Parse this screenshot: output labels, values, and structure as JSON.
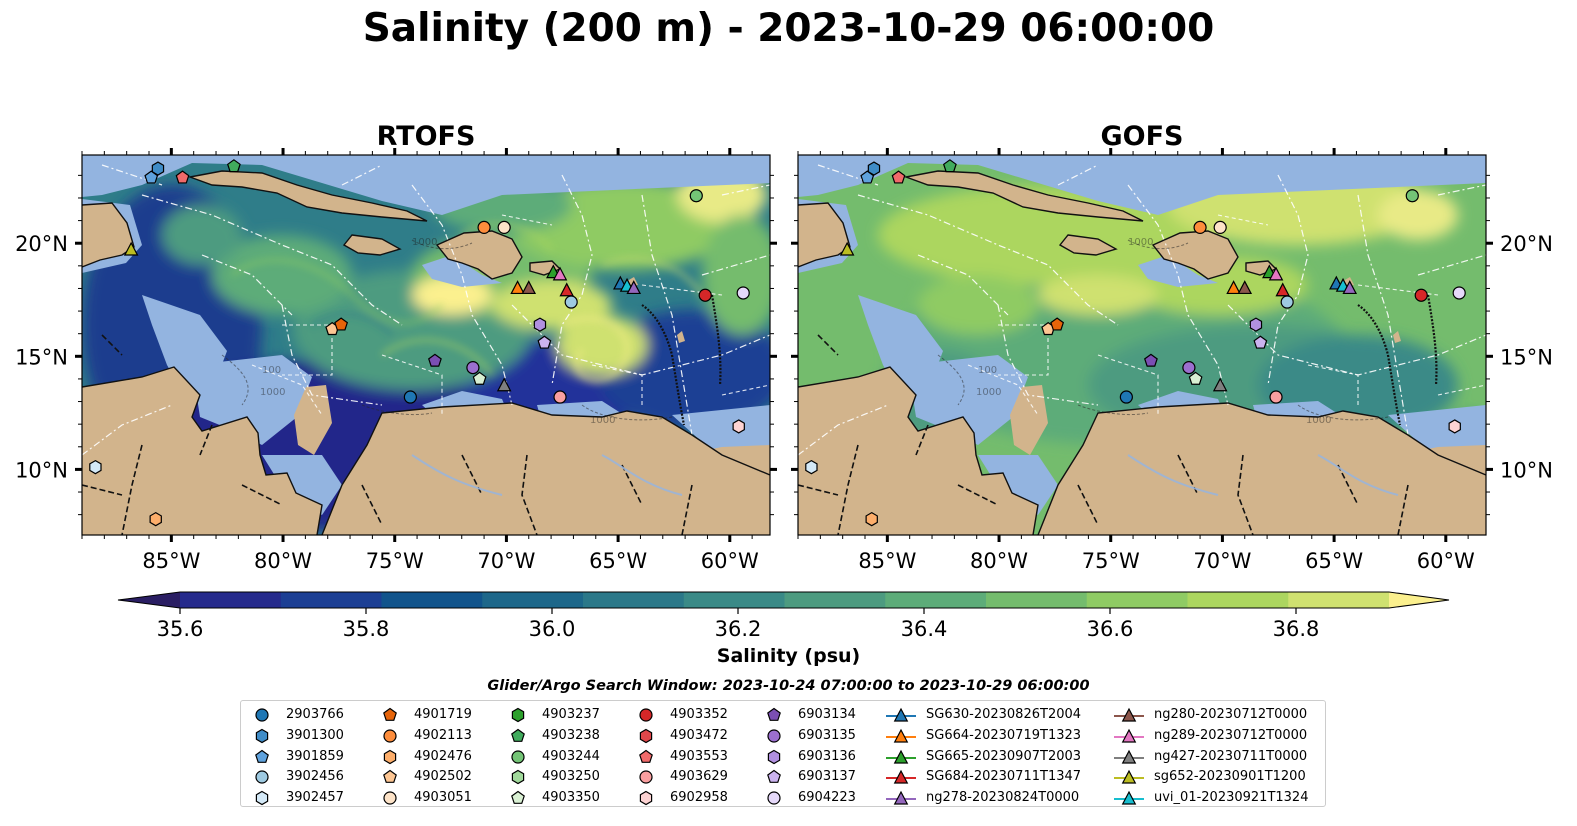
{
  "title": "Salinity (200 m) - 2023-10-29 06:00:00",
  "panels": [
    {
      "name": "RTOFS",
      "model": "rtofs"
    },
    {
      "name": "GOFS",
      "model": "gofs"
    }
  ],
  "axes": {
    "lon_ticks": [
      "85°W",
      "80°W",
      "75°W",
      "70°W",
      "65°W",
      "60°W"
    ],
    "lat_ticks": [
      "20°N",
      "15°N",
      "10°N"
    ],
    "lon_range": [
      -89,
      -58.2
    ],
    "lat_range": [
      7.1,
      23.9
    ]
  },
  "colorbar": {
    "label": "Salinity (psu)",
    "ticks": [
      "35.6",
      "35.8",
      "36.0",
      "36.2",
      "36.4",
      "36.6",
      "36.8"
    ],
    "range": [
      35.6,
      36.9
    ],
    "extend": "both",
    "colormap": "haline",
    "colors": [
      "#2a1e63",
      "#252a8c",
      "#1c3f94",
      "#11548c",
      "#1d678a",
      "#2b7889",
      "#3a8a87",
      "#4d9b80",
      "#5dac79",
      "#74bc6d",
      "#8fcb64",
      "#acd65f",
      "#cfe170",
      "#fbf08e"
    ]
  },
  "legend": {
    "title": "Glider/Argo Search Window: 2023-10-24 07:00:00 to 2023-10-29 06:00:00",
    "columns": [
      [
        {
          "label": "2903766",
          "marker": "circle",
          "color": "#1f77b4"
        },
        {
          "label": "3901300",
          "marker": "hexagon",
          "color": "#3f8cc7"
        },
        {
          "label": "3901859",
          "marker": "pentagon",
          "color": "#5fa2dd"
        },
        {
          "label": "3902456",
          "marker": "circle",
          "color": "#9ecae1"
        },
        {
          "label": "3902457",
          "marker": "hexagon",
          "color": "#d4e9f7"
        }
      ],
      [
        {
          "label": "4901719",
          "marker": "pentagon",
          "color": "#e6640a"
        },
        {
          "label": "4902113",
          "marker": "circle",
          "color": "#fd8d3c"
        },
        {
          "label": "4902476",
          "marker": "hexagon",
          "color": "#fdae6b"
        },
        {
          "label": "4902502",
          "marker": "pentagon",
          "color": "#fdc693"
        },
        {
          "label": "4903051",
          "marker": "circle",
          "color": "#fde3c8"
        }
      ],
      [
        {
          "label": "4903237",
          "marker": "hexagon",
          "color": "#2ca02c"
        },
        {
          "label": "4903238",
          "marker": "pentagon",
          "color": "#41ab5d"
        },
        {
          "label": "4903244",
          "marker": "circle",
          "color": "#74c476"
        },
        {
          "label": "4903250",
          "marker": "hexagon",
          "color": "#a1d99b"
        },
        {
          "label": "4903350",
          "marker": "pentagon",
          "color": "#d9f0d3"
        }
      ],
      [
        {
          "label": "4903352",
          "marker": "circle",
          "color": "#d62728"
        },
        {
          "label": "4903472",
          "marker": "hexagon",
          "color": "#e0474a"
        },
        {
          "label": "4903553",
          "marker": "pentagon",
          "color": "#f06a6a"
        },
        {
          "label": "4903629",
          "marker": "circle",
          "color": "#fa9fa0"
        },
        {
          "label": "6902958",
          "marker": "hexagon",
          "color": "#fdd3d3"
        }
      ],
      [
        {
          "label": "6903134",
          "marker": "pentagon",
          "color": "#7b4fb3"
        },
        {
          "label": "6903135",
          "marker": "circle",
          "color": "#9b6fcf"
        },
        {
          "label": "6903136",
          "marker": "hexagon",
          "color": "#b190e0"
        },
        {
          "label": "6903137",
          "marker": "pentagon",
          "color": "#cbb3ef"
        },
        {
          "label": "6904223",
          "marker": "circle",
          "color": "#e6d9fa"
        }
      ],
      [
        {
          "label": "SG630-20230826T2004",
          "marker": "triangle-line",
          "color": "#1f77b4"
        },
        {
          "label": "SG664-20230719T1323",
          "marker": "triangle-line",
          "color": "#ff7f0e"
        },
        {
          "label": "SG665-20230907T2003",
          "marker": "triangle-line",
          "color": "#2ca02c"
        },
        {
          "label": "SG684-20230711T1347",
          "marker": "triangle-line",
          "color": "#d62728"
        },
        {
          "label": "ng278-20230824T0000",
          "marker": "triangle-line",
          "color": "#9467bd"
        }
      ],
      [
        {
          "label": "ng280-20230712T0000",
          "marker": "triangle-line",
          "color": "#8c564b"
        },
        {
          "label": "ng289-20230712T0000",
          "marker": "triangle-line",
          "color": "#e377c2"
        },
        {
          "label": "ng427-20230711T0000",
          "marker": "triangle-line",
          "color": "#7f7f7f"
        },
        {
          "label": "sg652-20230901T1200",
          "marker": "triangle-line",
          "color": "#bcbd22"
        },
        {
          "label": "uvi_01-20230921T1324",
          "marker": "triangle-line",
          "color": "#17becf"
        }
      ]
    ]
  },
  "platforms": [
    {
      "id": "3902457",
      "lon": -88.4,
      "lat": 10.1
    },
    {
      "id": "3901300",
      "lon": -85.6,
      "lat": 23.3
    },
    {
      "id": "3901859",
      "lon": -85.9,
      "lat": 22.9
    },
    {
      "id": "4903553",
      "lon": -84.5,
      "lat": 22.9
    },
    {
      "id": "4903238",
      "lon": -82.2,
      "lat": 23.4
    },
    {
      "id": "sg652-20230901T1200",
      "lon": -86.8,
      "lat": 19.7
    },
    {
      "id": "4902502",
      "lon": -77.8,
      "lat": 16.2
    },
    {
      "id": "4901719",
      "lon": -77.4,
      "lat": 16.4
    },
    {
      "id": "4902113",
      "lon": -71.0,
      "lat": 20.7
    },
    {
      "id": "4903051",
      "lon": -70.1,
      "lat": 20.7
    },
    {
      "id": "SG664-20230719T1323",
      "lon": -69.5,
      "lat": 18.0
    },
    {
      "id": "ng280-20230712T0000",
      "lon": -69.0,
      "lat": 18.0
    },
    {
      "id": "SG665-20230907T2003",
      "lon": -67.9,
      "lat": 18.7
    },
    {
      "id": "ng289-20230712T0000",
      "lon": -67.6,
      "lat": 18.6
    },
    {
      "id": "SG684-20230711T1347",
      "lon": -67.3,
      "lat": 17.9
    },
    {
      "id": "3902456",
      "lon": -67.1,
      "lat": 17.4
    },
    {
      "id": "SG630-20230826T2004",
      "lon": -64.9,
      "lat": 18.2
    },
    {
      "id": "uvi_01-20230921T1324",
      "lon": -64.6,
      "lat": 18.1
    },
    {
      "id": "ng278-20230824T0000",
      "lon": -64.3,
      "lat": 18.0
    },
    {
      "id": "4903244",
      "lon": -61.5,
      "lat": 22.1
    },
    {
      "id": "4903352",
      "lon": -61.1,
      "lat": 17.7
    },
    {
      "id": "6904223",
      "lon": -59.4,
      "lat": 17.8
    },
    {
      "id": "6903136",
      "lon": -68.5,
      "lat": 16.4
    },
    {
      "id": "6903137",
      "lon": -68.3,
      "lat": 15.6
    },
    {
      "id": "6903134",
      "lon": -73.2,
      "lat": 14.8
    },
    {
      "id": "6903135",
      "lon": -71.5,
      "lat": 14.5
    },
    {
      "id": "4903350",
      "lon": -71.2,
      "lat": 14.0
    },
    {
      "id": "ng427-20230711T0000",
      "lon": -70.1,
      "lat": 13.7
    },
    {
      "id": "2903766",
      "lon": -74.3,
      "lat": 13.2
    },
    {
      "id": "4903629",
      "lon": -67.6,
      "lat": 13.2
    },
    {
      "id": "6902958",
      "lon": -59.6,
      "lat": 11.9
    },
    {
      "id": "4902476",
      "lon": -85.7,
      "lat": 7.8
    }
  ]
}
